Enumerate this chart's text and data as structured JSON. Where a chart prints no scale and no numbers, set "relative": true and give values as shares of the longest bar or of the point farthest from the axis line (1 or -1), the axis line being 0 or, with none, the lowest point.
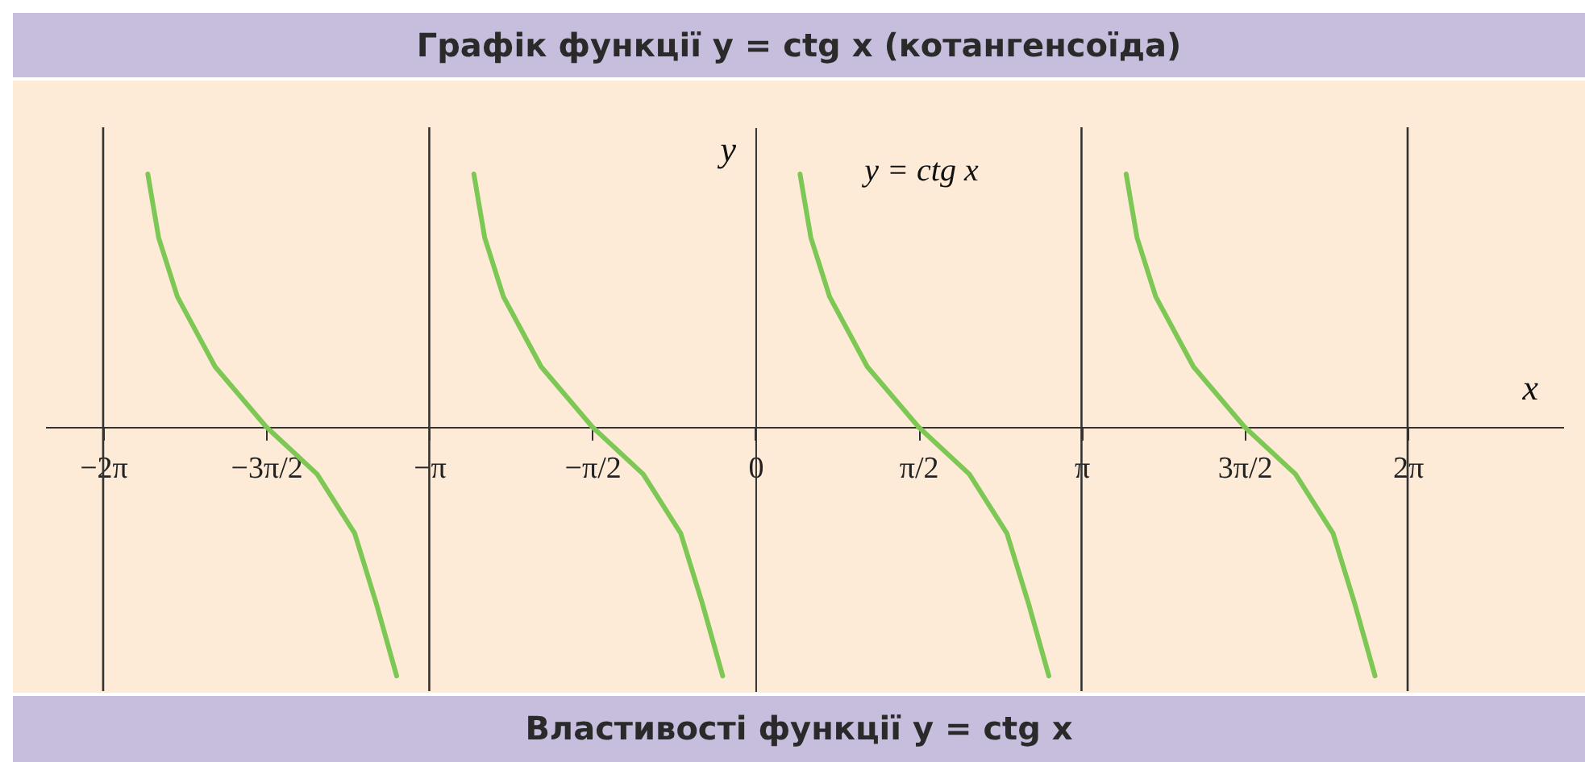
{
  "chart_data": {
    "type": "line",
    "title": "Графік функції  y = ctg x  (котангенсоїда)",
    "xlabel": "x",
    "ylabel": "y",
    "relative": true,
    "annotations": [
      "Властивості функції  y = ctg x"
    ],
    "x": [
      -5.853,
      -5.749,
      -5.568,
      -5.205,
      -4.712,
      -4.222,
      -3.86,
      -3.652,
      -3.456,
      -3.1416,
      -2.712,
      -2.608,
      -2.427,
      -2.064,
      -1.571,
      -1.081,
      -0.719,
      -0.511,
      -0.315,
      0,
      0.43,
      0.534,
      0.715,
      1.078,
      1.571,
      2.061,
      2.423,
      2.631,
      2.827,
      3.1416,
      3.572,
      3.676,
      3.857,
      4.22,
      4.712,
      5.203,
      5.565,
      5.773,
      5.969
    ],
    "series": [
      {
        "name": "y = ctg x",
        "color": "#7dc855",
        "values": [
          1,
          0.749,
          0.515,
          0.238,
          0,
          -0.187,
          -0.421,
          -0.698,
          -0.985,
          null,
          1,
          0.749,
          0.515,
          0.238,
          0,
          -0.187,
          -0.421,
          -0.698,
          -0.985,
          null,
          1,
          0.749,
          0.515,
          0.238,
          0,
          -0.187,
          -0.421,
          -0.698,
          -0.985,
          null,
          1,
          0.749,
          0.515,
          0.238,
          0,
          -0.187,
          -0.421,
          -0.698,
          -0.985
        ]
      }
    ],
    "xlim": [
      -6.842,
      7.79
    ],
    "xticks": [
      {
        "value": -6.2832,
        "label": "−2π"
      },
      {
        "value": -4.7124,
        "label": "−3π/2"
      },
      {
        "value": -3.1416,
        "label": "−π"
      },
      {
        "value": -1.5708,
        "label": "−π/2"
      },
      {
        "value": 0,
        "label": "0"
      },
      {
        "value": 1.5708,
        "label": "π/2"
      },
      {
        "value": 3.1416,
        "label": "π"
      },
      {
        "value": 4.7124,
        "label": "3π/2"
      },
      {
        "value": 6.2832,
        "label": "2π"
      }
    ],
    "ref_lines": [
      {
        "axis": "x",
        "value": -6.2832,
        "color": "#333333"
      },
      {
        "axis": "x",
        "value": -3.1416,
        "color": "#333333"
      },
      {
        "axis": "x",
        "value": 3.1416,
        "color": "#333333"
      },
      {
        "axis": "x",
        "value": 6.2832,
        "color": "#333333"
      }
    ],
    "grid": false,
    "marker": "none",
    "line_style": "solid"
  }
}
